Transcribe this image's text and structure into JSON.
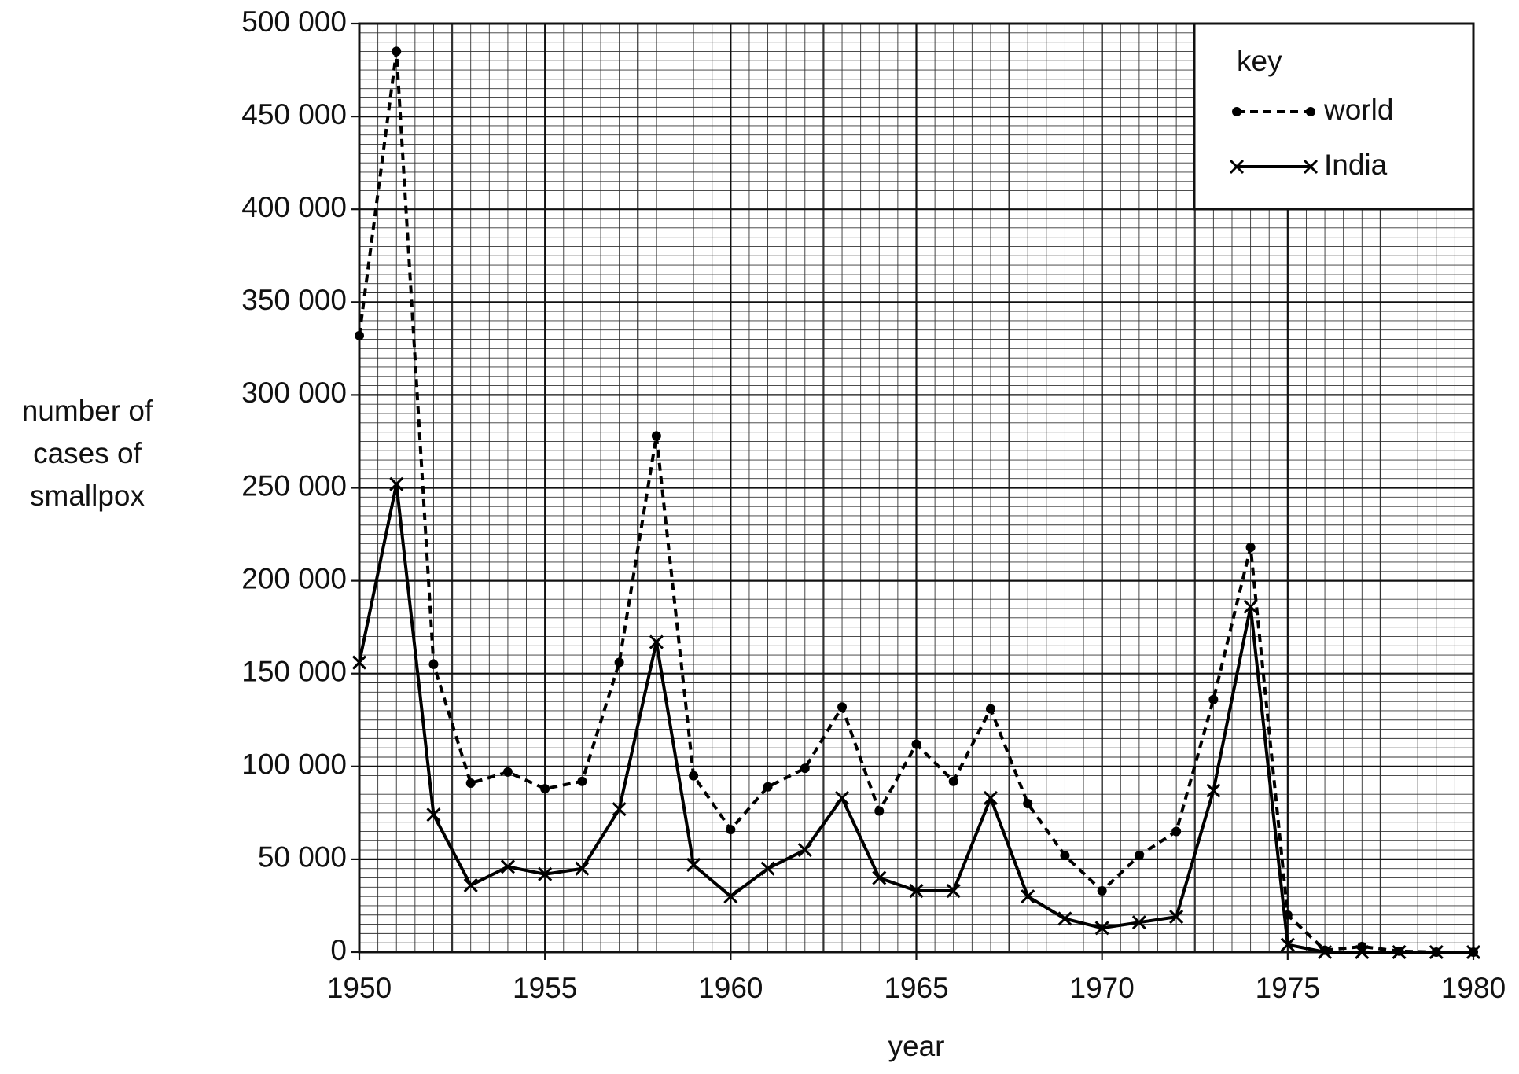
{
  "chart_data": {
    "type": "line",
    "x_label": "year",
    "y_label": "number of cases of smallpox",
    "legend_title": "key",
    "legend_position": "upper right",
    "x": [
      1950,
      1951,
      1952,
      1953,
      1954,
      1955,
      1956,
      1957,
      1958,
      1959,
      1960,
      1961,
      1962,
      1963,
      1964,
      1965,
      1966,
      1967,
      1968,
      1969,
      1970,
      1971,
      1972,
      1973,
      1974,
      1975,
      1976,
      1977,
      1978,
      1979,
      1980
    ],
    "series": [
      {
        "name": "world",
        "color": "#000000",
        "dash": true,
        "marker": "dot",
        "values": [
          332000,
          485000,
          155000,
          91000,
          97000,
          88000,
          92000,
          156000,
          278000,
          95000,
          66000,
          89000,
          99000,
          132000,
          76000,
          112000,
          92000,
          131000,
          80000,
          52000,
          33000,
          52000,
          65000,
          136000,
          218000,
          20000,
          1000,
          3000,
          500,
          0,
          0
        ]
      },
      {
        "name": "India",
        "color": "#000000",
        "dash": false,
        "marker": "cross",
        "values": [
          156000,
          252000,
          74000,
          36000,
          46000,
          42000,
          45000,
          77000,
          167000,
          47000,
          30000,
          45000,
          55000,
          83000,
          40000,
          33000,
          33000,
          83000,
          30000,
          18000,
          13000,
          16000,
          19000,
          87000,
          186000,
          4000,
          0,
          0,
          0,
          0,
          0
        ]
      }
    ],
    "xlim": [
      1950,
      1980
    ],
    "xticks": [
      1950,
      1955,
      1960,
      1965,
      1970,
      1975,
      1980
    ],
    "ylim": [
      0,
      500000
    ],
    "yticks": [
      0,
      {
        "value": 50000,
        "label": "50 000"
      },
      {
        "value": 100000,
        "label": "100 000"
      },
      {
        "value": 150000,
        "label": "150 000"
      },
      {
        "value": 200000,
        "label": "200 000"
      },
      {
        "value": 250000,
        "label": "250 000"
      },
      {
        "value": 300000,
        "label": "300 000"
      },
      {
        "value": 350000,
        "label": "350 000"
      },
      {
        "value": 400000,
        "label": "400 000"
      },
      {
        "value": 450000,
        "label": "450 000"
      },
      {
        "value": 500000,
        "label": "500 000"
      }
    ],
    "grid": true
  }
}
